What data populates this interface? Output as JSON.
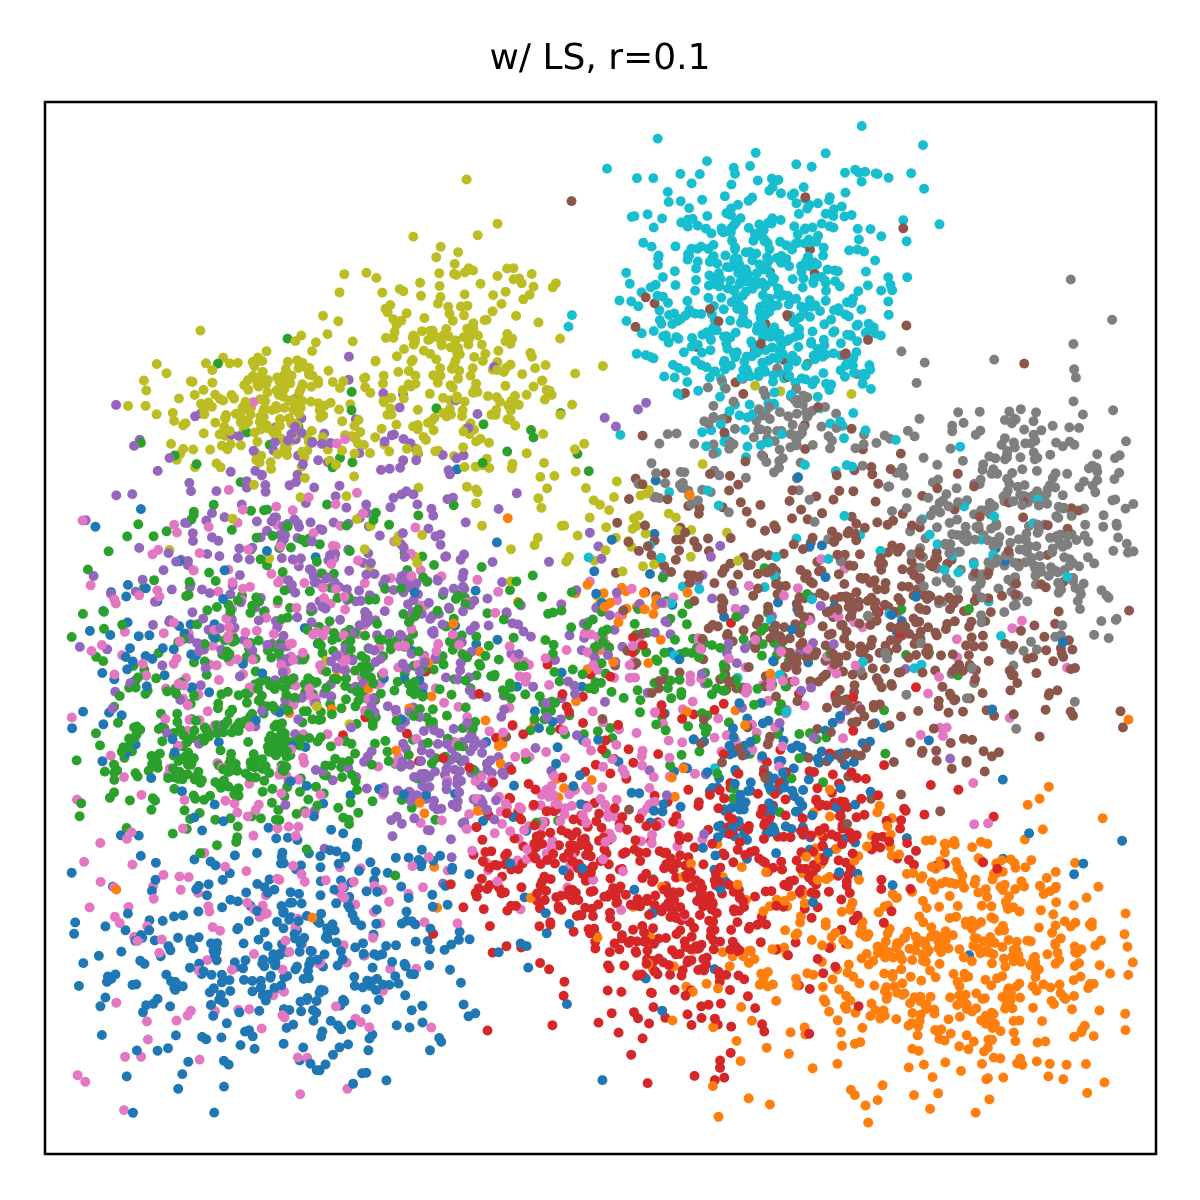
{
  "chart_data": {
    "type": "scatter",
    "title": "w/ LS, r=0.1",
    "xlabel": "",
    "ylabel": "",
    "xticks": [],
    "yticks": [],
    "legend": "none",
    "grid": false,
    "xlim": [
      0,
      100
    ],
    "ylim": [
      0,
      100
    ],
    "series": [
      {
        "color": "#1f77b4",
        "clusters": [
          {
            "cx": 22,
            "cy": 19,
            "sx": 9,
            "sy": 6.5,
            "n": 380
          },
          {
            "cx": 65,
            "cy": 34,
            "sx": 4.5,
            "sy": 3.5,
            "n": 110
          },
          {
            "cx": 50,
            "cy": 40,
            "sx": 25,
            "sy": 12,
            "n": 160
          },
          {
            "cx": 8,
            "cy": 46,
            "sx": 4,
            "sy": 6,
            "n": 50
          }
        ]
      },
      {
        "color": "#ff7f0e",
        "clusters": [
          {
            "cx": 81,
            "cy": 19,
            "sx": 10,
            "sy": 6.5,
            "n": 560
          },
          {
            "cx": 45,
            "cy": 42,
            "sx": 12,
            "sy": 8,
            "n": 50
          },
          {
            "cx": 52,
            "cy": 52,
            "sx": 3,
            "sy": 1,
            "n": 20
          }
        ]
      },
      {
        "color": "#2ca02c",
        "clusters": [
          {
            "cx": 17,
            "cy": 38,
            "sx": 7,
            "sy": 4,
            "n": 260
          },
          {
            "cx": 22,
            "cy": 49,
            "sx": 9,
            "sy": 7,
            "n": 230
          },
          {
            "cx": 43,
            "cy": 46,
            "sx": 14,
            "sy": 5,
            "n": 230
          },
          {
            "cx": 60,
            "cy": 42,
            "sx": 8,
            "sy": 6,
            "n": 60
          },
          {
            "cx": 28,
            "cy": 68,
            "sx": 14,
            "sy": 4,
            "n": 25
          }
        ]
      },
      {
        "color": "#d62728",
        "clusters": [
          {
            "cx": 47,
            "cy": 27,
            "sx": 4.5,
            "sy": 3.5,
            "n": 160
          },
          {
            "cx": 58,
            "cy": 22,
            "sx": 6,
            "sy": 6,
            "n": 300
          },
          {
            "cx": 71,
            "cy": 30,
            "sx": 6,
            "sy": 4,
            "n": 130
          },
          {
            "cx": 52,
            "cy": 38,
            "sx": 12,
            "sy": 6,
            "n": 80
          }
        ]
      },
      {
        "color": "#9467bd",
        "clusters": [
          {
            "cx": 24,
            "cy": 55,
            "sx": 9,
            "sy": 7,
            "n": 300
          },
          {
            "cx": 35,
            "cy": 36,
            "sx": 4,
            "sy": 3,
            "n": 120
          },
          {
            "cx": 45,
            "cy": 48,
            "sx": 14,
            "sy": 5,
            "n": 150
          },
          {
            "cx": 29,
            "cy": 66,
            "sx": 15,
            "sy": 4,
            "n": 30
          }
        ]
      },
      {
        "color": "#8c564b",
        "clusters": [
          {
            "cx": 74,
            "cy": 50,
            "sx": 9,
            "sy": 7,
            "n": 520
          },
          {
            "cx": 62,
            "cy": 72,
            "sx": 8,
            "sy": 9,
            "n": 40
          },
          {
            "cx": 60,
            "cy": 58,
            "sx": 6,
            "sy": 4,
            "n": 30
          }
        ]
      },
      {
        "color": "#e377c2",
        "clusters": [
          {
            "cx": 19,
            "cy": 22,
            "sx": 9,
            "sy": 8,
            "n": 140
          },
          {
            "cx": 20,
            "cy": 50,
            "sx": 9,
            "sy": 7,
            "n": 180
          },
          {
            "cx": 48,
            "cy": 33,
            "sx": 6,
            "sy": 3.5,
            "n": 110
          },
          {
            "cx": 55,
            "cy": 45,
            "sx": 15,
            "sy": 5,
            "n": 150
          }
        ]
      },
      {
        "color": "#7f7f7f",
        "clusters": [
          {
            "cx": 88,
            "cy": 60,
            "sx": 6,
            "sy": 7,
            "n": 380
          },
          {
            "cx": 66,
            "cy": 69,
            "sx": 3.5,
            "sy": 2.5,
            "n": 80
          },
          {
            "cx": 57,
            "cy": 64,
            "sx": 2.5,
            "sy": 2,
            "n": 25
          }
        ]
      },
      {
        "color": "#bcbd22",
        "clusters": [
          {
            "cx": 20,
            "cy": 71,
            "sx": 4.5,
            "sy": 3,
            "n": 220
          },
          {
            "cx": 37,
            "cy": 75,
            "sx": 5,
            "sy": 6,
            "n": 260
          },
          {
            "cx": 52,
            "cy": 60,
            "sx": 5,
            "sy": 2.5,
            "n": 40
          },
          {
            "cx": 35,
            "cy": 60,
            "sx": 20,
            "sy": 8,
            "n": 25
          }
        ]
      },
      {
        "color": "#17becf",
        "clusters": [
          {
            "cx": 65,
            "cy": 81,
            "sx": 6,
            "sy": 7,
            "n": 560
          },
          {
            "cx": 69,
            "cy": 50,
            "sx": 10,
            "sy": 6,
            "n": 30
          },
          {
            "cx": 86,
            "cy": 58,
            "sx": 5,
            "sy": 5,
            "n": 15
          }
        ]
      }
    ]
  }
}
